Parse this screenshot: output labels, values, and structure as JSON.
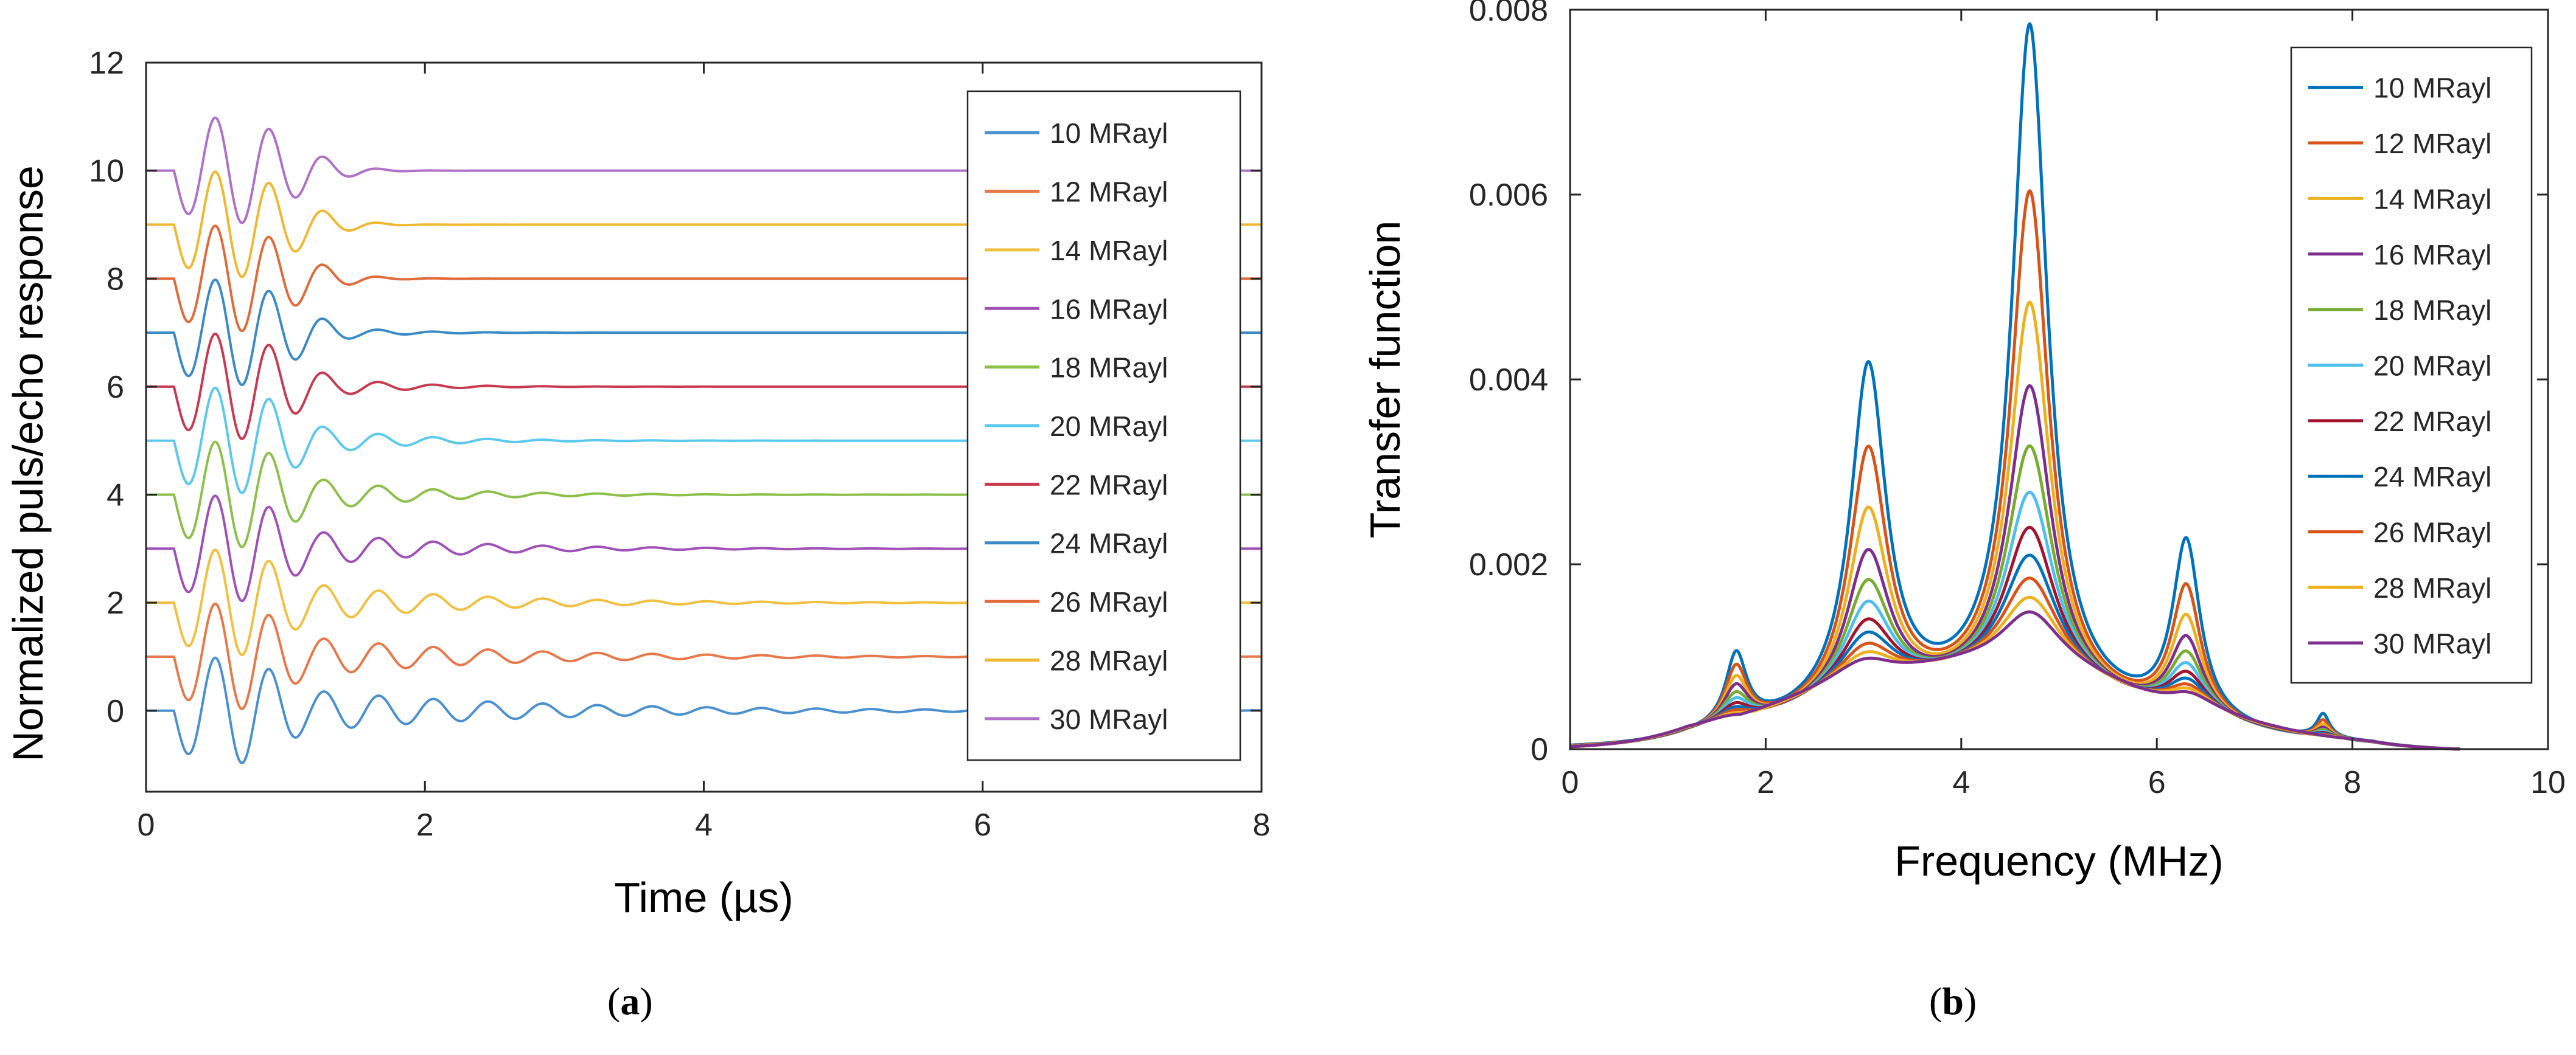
{
  "captions": {
    "a": {
      "open": "(",
      "letter": "a",
      "close": ")"
    },
    "b": {
      "open": "(",
      "letter": "b",
      "close": ")"
    }
  },
  "colors": {
    "10 MRayl": "#0072BD",
    "12 MRayl": "#D95319",
    "14 MRayl": "#EDB120",
    "16 MRayl": "#7E2F8E",
    "18 MRayl": "#77AC30",
    "20 MRayl": "#4DBEEE",
    "22 MRayl": "#A2142F",
    "24 MRayl": "#0072BD",
    "26 MRayl": "#D95319",
    "28 MRayl": "#EDB120",
    "30 MRayl": "#7E2F8E"
  },
  "chart_data": [
    {
      "id": "a",
      "type": "line",
      "title": "",
      "xlabel": "Time (µs)",
      "ylabel": "Normalized puls/echo response",
      "xlim": [
        0,
        8
      ],
      "ylim": [
        -1.5,
        12
      ],
      "xticks": [
        0,
        2,
        4,
        6,
        8
      ],
      "yticks": [
        0,
        2,
        4,
        6,
        8,
        10,
        12
      ],
      "grid": false,
      "legend_position": "top-right",
      "legend": [
        "10 MRayl",
        "12 MRayl",
        "14 MRayl",
        "16 MRayl",
        "18 MRayl",
        "20 MRayl",
        "22 MRayl",
        "24 MRayl",
        "26 MRayl",
        "28 MRayl",
        "30 MRayl"
      ],
      "series": [
        {
          "name": "10 MRayl",
          "offset": 0,
          "color": "#4A90D0",
          "peak_amplitude": 1.0,
          "ring_down_end": 6.0
        },
        {
          "name": "12 MRayl",
          "offset": 1,
          "color": "#E8784A",
          "peak_amplitude": 1.0,
          "ring_down_end": 5.0
        },
        {
          "name": "14 MRayl",
          "offset": 2,
          "color": "#F2C040",
          "peak_amplitude": 1.0,
          "ring_down_end": 4.5
        },
        {
          "name": "16 MRayl",
          "offset": 3,
          "color": "#A050B8",
          "peak_amplitude": 1.0,
          "ring_down_end": 4.0
        },
        {
          "name": "18 MRayl",
          "offset": 4,
          "color": "#8CC04A",
          "peak_amplitude": 1.0,
          "ring_down_end": 3.5
        },
        {
          "name": "20 MRayl",
          "offset": 5,
          "color": "#5BC8EE",
          "peak_amplitude": 1.0,
          "ring_down_end": 3.0
        },
        {
          "name": "22 MRayl",
          "offset": 6,
          "color": "#C83A50",
          "peak_amplitude": 1.0,
          "ring_down_end": 2.6
        },
        {
          "name": "24 MRayl",
          "offset": 7,
          "color": "#3A8AC8",
          "peak_amplitude": 1.0,
          "ring_down_end": 2.3
        },
        {
          "name": "26 MRayl",
          "offset": 8,
          "color": "#E06A3A",
          "peak_amplitude": 1.0,
          "ring_down_end": 2.0
        },
        {
          "name": "28 MRayl",
          "offset": 9,
          "color": "#F0B830",
          "peak_amplitude": 1.0,
          "ring_down_end": 1.8
        },
        {
          "name": "30 MRayl",
          "offset": 10,
          "color": "#B070C8",
          "peak_amplitude": 1.0,
          "ring_down_end": 1.6
        }
      ]
    },
    {
      "id": "b",
      "type": "line",
      "title": "",
      "xlabel": "Frequency (MHz)",
      "ylabel": "Transfer function",
      "xlim": [
        0,
        10
      ],
      "ylim": [
        0,
        0.008
      ],
      "xticks": [
        0,
        2,
        4,
        6,
        8,
        10
      ],
      "yticks": [
        0,
        0.002,
        0.004,
        0.006,
        0.008
      ],
      "ytick_labels": [
        "0",
        "0.002",
        "0.004",
        "0.006",
        "0.008"
      ],
      "grid": false,
      "legend_position": "top-right",
      "legend": [
        "10 MRayl",
        "12 MRayl",
        "14 MRayl",
        "16 MRayl",
        "18 MRayl",
        "20 MRayl",
        "22 MRayl",
        "24 MRayl",
        "26 MRayl",
        "28 MRayl",
        "30 MRayl"
      ],
      "resonance_frequencies": [
        1.7,
        3.05,
        4.7,
        6.3,
        7.7
      ],
      "series": [
        {
          "name": "10 MRayl",
          "peaks": [
            0.0009,
            0.004,
            0.0077,
            0.0021,
            0.0003
          ]
        },
        {
          "name": "12 MRayl",
          "peaks": [
            0.00077,
            0.0031,
            0.0059,
            0.00162,
            0.00024
          ]
        },
        {
          "name": "14 MRayl",
          "peaks": [
            0.00066,
            0.00245,
            0.0047,
            0.0013,
            0.0002
          ]
        },
        {
          "name": "16 MRayl",
          "peaks": [
            0.00058,
            0.002,
            0.0038,
            0.00108,
            0.00017
          ]
        },
        {
          "name": "18 MRayl",
          "peaks": [
            0.0005,
            0.00168,
            0.00315,
            0.00092,
            0.00015
          ]
        },
        {
          "name": "20 MRayl",
          "peaks": [
            0.00044,
            0.00145,
            0.00265,
            0.0008,
            0.00013
          ]
        },
        {
          "name": "22 MRayl",
          "peaks": [
            0.00039,
            0.00126,
            0.00227,
            0.00071,
            0.00012
          ]
        },
        {
          "name": "24 MRayl",
          "peaks": [
            0.00035,
            0.00112,
            0.00197,
            0.00064,
            0.00011
          ]
        },
        {
          "name": "26 MRayl",
          "peaks": [
            0.00032,
            0.001,
            0.00172,
            0.00058,
            0.0001
          ]
        },
        {
          "name": "28 MRayl",
          "peaks": [
            0.00029,
            0.00091,
            0.00151,
            0.00054,
            9e-05
          ]
        },
        {
          "name": "30 MRayl",
          "peaks": [
            0.00027,
            0.00084,
            0.00135,
            0.0005,
            8e-05
          ]
        }
      ]
    }
  ]
}
